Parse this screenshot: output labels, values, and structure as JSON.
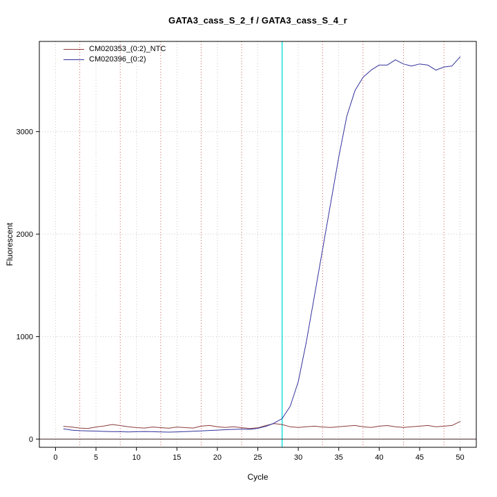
{
  "chart": {
    "title": "GATA3_cass_S_2_f / GATA3_cass_S_4_r",
    "xlabel": "Cycle",
    "ylabel": "Fluorescent"
  },
  "chart_data": {
    "type": "line",
    "title": "GATA3_cass_S_2_f / GATA3_cass_S_4_r",
    "xlabel": "Cycle",
    "ylabel": "Fluorescent",
    "xlim": [
      -2,
      52
    ],
    "ylim": [
      -80,
      3880
    ],
    "xticks": [
      0,
      5,
      10,
      15,
      20,
      25,
      30,
      35,
      40,
      45,
      50
    ],
    "yticks": [
      0,
      1000,
      2000,
      3000
    ],
    "grid": true,
    "grid_color": "#c8c8c8",
    "legend_position": "top-left",
    "threshold_line": {
      "x": 28,
      "color": "#00dddd"
    },
    "dotted_vlines": {
      "x": [
        3,
        8,
        13,
        18,
        23,
        28,
        33,
        38,
        43,
        48
      ],
      "color": "#cc5555"
    },
    "zero_hline": {
      "y": 0,
      "color": "#3a2020"
    },
    "x": [
      1,
      2,
      3,
      4,
      5,
      6,
      7,
      8,
      9,
      10,
      11,
      12,
      13,
      14,
      15,
      16,
      17,
      18,
      19,
      20,
      21,
      22,
      23,
      24,
      25,
      26,
      27,
      28,
      29,
      30,
      31,
      32,
      33,
      34,
      35,
      36,
      37,
      38,
      39,
      40,
      41,
      42,
      43,
      44,
      45,
      46,
      47,
      48,
      49,
      50
    ],
    "series": [
      {
        "name": "CM020353_(0:2)_NTC",
        "color": "#8b3a3a",
        "values": [
          125,
          118,
          108,
          104,
          118,
          128,
          142,
          132,
          120,
          112,
          108,
          118,
          112,
          106,
          118,
          112,
          108,
          126,
          133,
          120,
          113,
          120,
          112,
          103,
          110,
          132,
          152,
          142,
          120,
          113,
          120,
          126,
          118,
          113,
          121,
          127,
          133,
          120,
          114,
          126,
          132,
          120,
          114,
          121,
          126,
          133,
          120,
          126,
          133,
          172
        ]
      },
      {
        "name": "CM020396_(0:2)",
        "color": "#30309c",
        "values": [
          100,
          88,
          82,
          80,
          78,
          75,
          73,
          72,
          70,
          72,
          74,
          72,
          70,
          68,
          70,
          73,
          76,
          80,
          84,
          88,
          92,
          95,
          98,
          95,
          105,
          125,
          155,
          200,
          320,
          560,
          950,
          1400,
          1850,
          2300,
          2750,
          3150,
          3400,
          3530,
          3600,
          3650,
          3650,
          3700,
          3660,
          3640,
          3660,
          3650,
          3600,
          3630,
          3640,
          3730
        ]
      }
    ]
  }
}
